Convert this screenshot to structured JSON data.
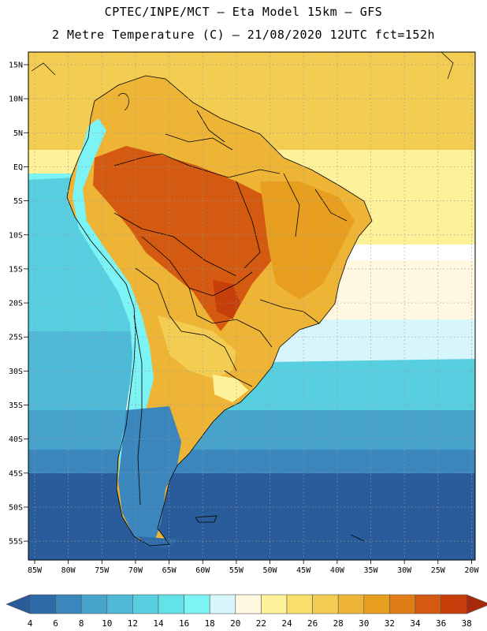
{
  "header": {
    "line1": "CPTEC/INPE/MCT –  Eta Model 15km – GFS",
    "line2": "2 Metre Temperature (C) – 21/08/2020 12UTC fct=152h"
  },
  "axes": {
    "lat_labels": [
      "15N",
      "10N",
      "5N",
      "EQ",
      "5S",
      "10S",
      "15S",
      "20S",
      "25S",
      "30S",
      "35S",
      "40S",
      "45S",
      "50S",
      "55S"
    ],
    "lon_labels": [
      "85W",
      "80W",
      "75W",
      "70W",
      "65W",
      "60W",
      "55W",
      "50W",
      "45W",
      "40W",
      "35W",
      "30W",
      "25W",
      "20W"
    ]
  },
  "colorbar": {
    "labels": [
      "4",
      "6",
      "8",
      "10",
      "12",
      "14",
      "16",
      "18",
      "20",
      "22",
      "24",
      "26",
      "28",
      "30",
      "32",
      "34",
      "36",
      "38"
    ],
    "colors": [
      "#2a5c9c",
      "#2f6aa9",
      "#3a86bd",
      "#48a3cc",
      "#4fbad8",
      "#57cfe0",
      "#63e2ea",
      "#7cf3f5",
      "#d7f6fb",
      "#fff7e0",
      "#fdf29a",
      "#f8df6a",
      "#f3cd52",
      "#eeb436",
      "#e89e1f",
      "#e07d17",
      "#d35a10",
      "#c63f0a",
      "#a8280a"
    ]
  },
  "map_colors": {
    "ocean_south": "#2a5c9c",
    "ocean_mid": "#48a3cc",
    "ocean_cyan": "#57cfe0",
    "ocean_light": "#7cf3f5",
    "ocean_pale": "#d7f6fb",
    "ocean_cream": "#fff7e0",
    "ocean_yellow": "#fdf29a",
    "ocean_gold": "#f3cd52",
    "land_hot": "#d35a10",
    "land_warm": "#e89e1f",
    "land_mild": "#eeb436",
    "andes": "#7cf3f5",
    "patagonia": "#3a86bd"
  }
}
